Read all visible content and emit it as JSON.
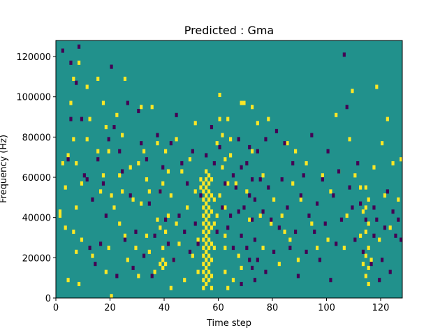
{
  "chart_data": {
    "type": "heatmap",
    "title": "Predicted : Gma",
    "xlabel": "Time step",
    "ylabel": "Frequency (Hz)",
    "xlim": [
      0,
      128
    ],
    "ylim": [
      0,
      128000
    ],
    "xticks": [
      0,
      20,
      40,
      60,
      80,
      100,
      120
    ],
    "yticks": [
      0,
      20000,
      40000,
      60000,
      80000,
      100000,
      120000
    ],
    "n_time_steps": 128,
    "n_freq_bins": 64,
    "grid": false,
    "colormap": "viridis",
    "colors": {
      "low": "#440154",
      "mid": "#21918c",
      "high": "#fde725"
    },
    "background_value": 0,
    "bright_cells": [
      [
        1,
        20
      ],
      [
        1,
        21
      ],
      [
        2,
        33
      ],
      [
        3,
        27
      ],
      [
        3,
        17
      ],
      [
        4,
        4
      ],
      [
        4,
        35
      ],
      [
        5,
        48
      ],
      [
        6,
        16
      ],
      [
        6,
        39
      ],
      [
        6,
        54
      ],
      [
        7,
        11
      ],
      [
        7,
        22
      ],
      [
        7,
        33
      ],
      [
        8,
        3
      ],
      [
        8,
        58
      ],
      [
        9,
        14
      ],
      [
        9,
        28
      ],
      [
        11,
        52
      ],
      [
        11,
        39
      ],
      [
        12,
        44
      ],
      [
        13,
        10
      ],
      [
        15,
        36
      ],
      [
        15,
        54
      ],
      [
        16,
        26
      ],
      [
        17,
        30
      ],
      [
        17,
        48
      ],
      [
        18,
        6
      ],
      [
        18,
        42
      ],
      [
        19,
        12
      ],
      [
        19,
        36
      ],
      [
        20,
        0
      ],
      [
        20,
        25
      ],
      [
        21,
        22
      ],
      [
        22,
        45
      ],
      [
        23,
        18
      ],
      [
        23,
        30
      ],
      [
        24,
        26
      ],
      [
        24,
        40
      ],
      [
        25,
        15
      ],
      [
        25,
        54
      ],
      [
        26,
        9
      ],
      [
        27,
        32
      ],
      [
        28,
        24
      ],
      [
        29,
        12
      ],
      [
        30,
        5
      ],
      [
        30,
        33
      ],
      [
        31,
        23
      ],
      [
        31,
        47
      ],
      [
        32,
        36
      ],
      [
        33,
        15
      ],
      [
        33,
        29
      ],
      [
        34,
        11
      ],
      [
        34,
        26
      ],
      [
        35,
        47
      ],
      [
        36,
        6
      ],
      [
        37,
        19
      ],
      [
        37,
        38
      ],
      [
        38,
        8
      ],
      [
        38,
        17
      ],
      [
        38,
        26
      ],
      [
        39,
        7
      ],
      [
        39,
        12
      ],
      [
        39,
        28
      ],
      [
        39,
        9
      ],
      [
        40,
        8
      ],
      [
        40,
        16
      ],
      [
        40,
        36
      ],
      [
        41,
        20
      ],
      [
        41,
        31
      ],
      [
        42,
        2
      ],
      [
        42,
        25
      ],
      [
        43,
        9
      ],
      [
        44,
        18
      ],
      [
        44,
        39
      ],
      [
        45,
        13
      ],
      [
        46,
        31
      ],
      [
        47,
        4
      ],
      [
        48,
        22
      ],
      [
        49,
        34
      ],
      [
        50,
        10
      ],
      [
        51,
        26
      ],
      [
        51,
        43
      ],
      [
        52,
        6
      ],
      [
        52,
        14
      ],
      [
        53,
        27
      ],
      [
        53,
        29
      ],
      [
        54,
        2
      ],
      [
        54,
        4
      ],
      [
        54,
        6
      ],
      [
        54,
        8
      ],
      [
        54,
        10
      ],
      [
        54,
        12
      ],
      [
        54,
        14
      ],
      [
        54,
        16
      ],
      [
        54,
        18
      ],
      [
        54,
        20
      ],
      [
        54,
        22
      ],
      [
        54,
        24
      ],
      [
        54,
        26
      ],
      [
        54,
        28
      ],
      [
        55,
        3
      ],
      [
        55,
        5
      ],
      [
        55,
        7
      ],
      [
        55,
        9
      ],
      [
        55,
        11
      ],
      [
        55,
        13
      ],
      [
        55,
        15
      ],
      [
        55,
        17
      ],
      [
        55,
        19
      ],
      [
        55,
        21
      ],
      [
        55,
        23
      ],
      [
        55,
        25
      ],
      [
        55,
        27
      ],
      [
        55,
        29
      ],
      [
        55,
        31
      ],
      [
        56,
        4
      ],
      [
        56,
        6
      ],
      [
        56,
        8
      ],
      [
        56,
        10
      ],
      [
        56,
        12
      ],
      [
        56,
        14
      ],
      [
        56,
        16
      ],
      [
        56,
        18
      ],
      [
        56,
        20
      ],
      [
        56,
        22
      ],
      [
        56,
        24
      ],
      [
        56,
        26
      ],
      [
        56,
        28
      ],
      [
        56,
        30
      ],
      [
        57,
        2
      ],
      [
        57,
        5
      ],
      [
        57,
        9
      ],
      [
        57,
        13
      ],
      [
        57,
        17
      ],
      [
        57,
        21
      ],
      [
        57,
        25
      ],
      [
        57,
        29
      ],
      [
        58,
        12
      ],
      [
        58,
        18
      ],
      [
        58,
        24
      ],
      [
        59,
        20
      ],
      [
        59,
        38
      ],
      [
        60,
        25
      ],
      [
        60,
        44
      ],
      [
        60,
        50
      ],
      [
        61,
        32
      ],
      [
        61,
        40
      ],
      [
        62,
        6
      ],
      [
        62,
        12
      ],
      [
        62,
        15
      ],
      [
        62,
        22
      ],
      [
        62,
        34
      ],
      [
        63,
        2
      ],
      [
        63,
        28
      ],
      [
        63,
        44
      ],
      [
        64,
        35
      ],
      [
        64,
        39
      ],
      [
        65,
        4
      ],
      [
        66,
        28
      ],
      [
        67,
        10
      ],
      [
        68,
        7
      ],
      [
        68,
        48
      ],
      [
        69,
        48
      ],
      [
        70,
        26
      ],
      [
        71,
        19
      ],
      [
        72,
        36
      ],
      [
        72,
        47
      ],
      [
        74,
        43
      ],
      [
        75,
        20
      ],
      [
        76,
        12
      ],
      [
        76,
        30
      ],
      [
        78,
        44
      ],
      [
        79,
        18
      ],
      [
        80,
        24
      ],
      [
        82,
        8
      ],
      [
        83,
        20
      ],
      [
        84,
        16
      ],
      [
        85,
        38
      ],
      [
        86,
        14
      ],
      [
        87,
        28
      ],
      [
        88,
        36
      ],
      [
        89,
        9
      ],
      [
        90,
        24
      ],
      [
        92,
        33
      ],
      [
        94,
        18
      ],
      [
        96,
        12
      ],
      [
        98,
        30
      ],
      [
        100,
        14
      ],
      [
        101,
        26
      ],
      [
        103,
        45
      ],
      [
        104,
        31
      ],
      [
        106,
        12
      ],
      [
        107,
        20
      ],
      [
        108,
        39
      ],
      [
        109,
        51
      ],
      [
        110,
        30
      ],
      [
        112,
        15
      ],
      [
        112,
        27
      ],
      [
        113,
        8
      ],
      [
        113,
        21
      ],
      [
        114,
        5
      ],
      [
        114,
        10
      ],
      [
        114,
        16
      ],
      [
        114,
        22
      ],
      [
        114,
        27
      ],
      [
        115,
        3
      ],
      [
        115,
        7
      ],
      [
        115,
        12
      ],
      [
        115,
        18
      ],
      [
        115,
        24
      ],
      [
        116,
        9
      ],
      [
        117,
        32
      ],
      [
        118,
        52
      ],
      [
        119,
        14
      ],
      [
        120,
        38
      ],
      [
        121,
        25
      ],
      [
        122,
        44
      ],
      [
        123,
        17
      ],
      [
        124,
        33
      ],
      [
        126,
        24
      ],
      [
        127,
        34
      ]
    ],
    "dark_cells": [
      [
        2,
        61
      ],
      [
        4,
        34
      ],
      [
        5,
        44
      ],
      [
        5,
        58
      ],
      [
        7,
        53
      ],
      [
        8,
        62
      ],
      [
        9,
        44
      ],
      [
        10,
        30
      ],
      [
        11,
        29
      ],
      [
        12,
        12
      ],
      [
        13,
        24
      ],
      [
        14,
        8
      ],
      [
        15,
        34
      ],
      [
        16,
        13
      ],
      [
        17,
        28
      ],
      [
        18,
        20
      ],
      [
        19,
        39
      ],
      [
        20,
        57
      ],
      [
        21,
        42
      ],
      [
        22,
        5
      ],
      [
        23,
        36
      ],
      [
        24,
        31
      ],
      [
        25,
        14
      ],
      [
        26,
        48
      ],
      [
        27,
        25
      ],
      [
        28,
        7
      ],
      [
        29,
        16
      ],
      [
        30,
        46
      ],
      [
        31,
        38
      ],
      [
        32,
        10
      ],
      [
        33,
        34
      ],
      [
        34,
        23
      ],
      [
        35,
        5
      ],
      [
        36,
        15
      ],
      [
        37,
        40
      ],
      [
        38,
        26
      ],
      [
        39,
        32
      ],
      [
        40,
        19
      ],
      [
        41,
        13
      ],
      [
        42,
        38
      ],
      [
        43,
        9
      ],
      [
        44,
        45
      ],
      [
        45,
        20
      ],
      [
        46,
        33
      ],
      [
        47,
        16
      ],
      [
        48,
        28
      ],
      [
        49,
        11
      ],
      [
        50,
        36
      ],
      [
        51,
        18
      ],
      [
        52,
        13
      ],
      [
        53,
        25
      ],
      [
        55,
        35
      ],
      [
        57,
        42
      ],
      [
        58,
        33
      ],
      [
        59,
        16
      ],
      [
        60,
        37
      ],
      [
        61,
        22
      ],
      [
        62,
        28
      ],
      [
        63,
        17
      ],
      [
        64,
        20
      ],
      [
        65,
        12
      ],
      [
        65,
        30
      ],
      [
        66,
        27
      ],
      [
        67,
        21
      ],
      [
        67,
        39
      ],
      [
        68,
        3
      ],
      [
        68,
        15
      ],
      [
        68,
        32
      ],
      [
        69,
        22
      ],
      [
        70,
        33
      ],
      [
        70,
        12
      ],
      [
        71,
        9
      ],
      [
        71,
        25
      ],
      [
        71,
        37
      ],
      [
        72,
        7
      ],
      [
        72,
        19
      ],
      [
        72,
        29
      ],
      [
        73,
        4
      ],
      [
        73,
        14
      ],
      [
        73,
        24
      ],
      [
        74,
        36
      ],
      [
        74,
        9
      ],
      [
        75,
        29
      ],
      [
        76,
        21
      ],
      [
        77,
        6
      ],
      [
        77,
        39
      ],
      [
        78,
        27
      ],
      [
        79,
        19
      ],
      [
        80,
        11
      ],
      [
        81,
        41
      ],
      [
        82,
        17
      ],
      [
        83,
        29
      ],
      [
        84,
        38
      ],
      [
        85,
        22
      ],
      [
        86,
        12
      ],
      [
        87,
        33
      ],
      [
        88,
        16
      ],
      [
        89,
        5
      ],
      [
        90,
        25
      ],
      [
        91,
        30
      ],
      [
        92,
        11
      ],
      [
        93,
        20
      ],
      [
        94,
        40
      ],
      [
        95,
        16
      ],
      [
        96,
        23
      ],
      [
        97,
        9
      ],
      [
        98,
        29
      ],
      [
        99,
        18
      ],
      [
        100,
        36
      ],
      [
        101,
        4
      ],
      [
        102,
        25
      ],
      [
        103,
        13
      ],
      [
        104,
        31
      ],
      [
        105,
        19
      ],
      [
        106,
        60
      ],
      [
        107,
        47
      ],
      [
        108,
        27
      ],
      [
        109,
        22
      ],
      [
        110,
        14
      ],
      [
        111,
        33
      ],
      [
        112,
        23
      ],
      [
        113,
        11
      ],
      [
        114,
        19
      ],
      [
        116,
        8
      ],
      [
        117,
        15
      ],
      [
        117,
        22
      ],
      [
        118,
        19
      ],
      [
        119,
        4
      ],
      [
        120,
        9
      ],
      [
        121,
        17
      ],
      [
        122,
        26
      ],
      [
        123,
        6
      ],
      [
        124,
        21
      ],
      [
        125,
        15
      ],
      [
        126,
        19
      ],
      [
        127,
        14
      ]
    ]
  }
}
